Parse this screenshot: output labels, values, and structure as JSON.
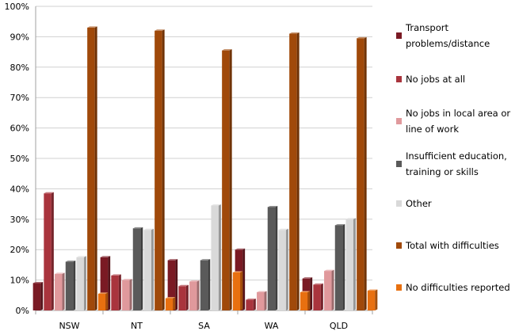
{
  "chart_data": {
    "type": "bar",
    "categories": [
      "NSW",
      "NT",
      "SA",
      "WA",
      "QLD"
    ],
    "ylim": [
      0,
      100
    ],
    "yticks": [
      "0%",
      "10%",
      "20%",
      "30%",
      "40%",
      "50%",
      "60%",
      "70%",
      "80%",
      "90%",
      "100%"
    ],
    "grid": true,
    "legend_position": "right",
    "series": [
      {
        "name": "Transport problems/distance",
        "color": "#7a1a24",
        "values": [
          9,
          17.5,
          16.5,
          20,
          10.5
        ]
      },
      {
        "name": "No jobs at all",
        "color": "#a9343d",
        "values": [
          38.5,
          11.5,
          8,
          3.5,
          8.5
        ]
      },
      {
        "name": "No jobs in local area or line of work",
        "color": "#e0999c",
        "values": [
          12,
          10,
          9.5,
          6,
          13
        ]
      },
      {
        "name": "Insufficient education, training or skills",
        "color": "#5a5a5a",
        "values": [
          16,
          27,
          16.5,
          34,
          28
        ]
      },
      {
        "name": "Other",
        "color": "#d9d9d9",
        "values": [
          17.5,
          26.5,
          34.5,
          26.5,
          30
        ]
      },
      {
        "name": "Total with difficulties",
        "color": "#a0490a",
        "values": [
          93,
          92,
          85.5,
          91,
          89.5
        ]
      },
      {
        "name": "No difficulties reported",
        "color": "#e87010",
        "values": [
          5.5,
          4,
          12.5,
          6,
          6.5
        ]
      }
    ]
  }
}
